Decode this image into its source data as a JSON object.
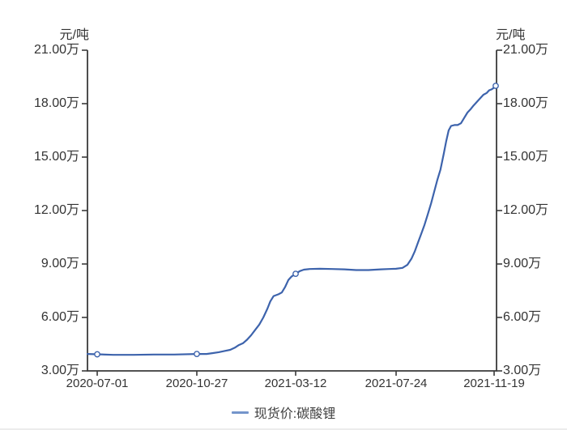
{
  "colors": {
    "line": "#3D63AC",
    "legend_swatch": "#7495CB",
    "axis": "#3a3a3a",
    "text": "#333333",
    "marker_fill": "#ffffff",
    "divider": "#ececec"
  },
  "chart_data": {
    "type": "line",
    "title": "",
    "grid": false,
    "legend_position": "bottom",
    "y_axis": {
      "unit_label_left": "元/吨",
      "unit_label_right": "元/吨",
      "min": 3,
      "max": 21,
      "value_unit": "万元/吨",
      "ticks": [
        {
          "value": 3,
          "label": "3.00万"
        },
        {
          "value": 6,
          "label": "6.00万"
        },
        {
          "value": 9,
          "label": "9.00万"
        },
        {
          "value": 12,
          "label": "12.00万"
        },
        {
          "value": 15,
          "label": "15.00万"
        },
        {
          "value": 18,
          "label": "18.00万"
        },
        {
          "value": 21,
          "label": "21.00万"
        }
      ]
    },
    "x_axis": {
      "ticks": [
        {
          "f": 0.0238,
          "label": "2020-07-01"
        },
        {
          "f": 0.2673,
          "label": "2020-10-27"
        },
        {
          "f": 0.5089,
          "label": "2021-03-12"
        },
        {
          "f": 0.7545,
          "label": "2021-07-24"
        },
        {
          "f": 0.9941,
          "label": "2021-11-19"
        }
      ]
    },
    "series": [
      {
        "name": "现货价:碳酸锂",
        "color": "#3D63AC",
        "values_unit": "万元/吨",
        "points": [
          [
            0.0,
            3.95
          ],
          [
            0.024,
            3.93
          ],
          [
            0.063,
            3.9
          ],
          [
            0.113,
            3.9
          ],
          [
            0.162,
            3.92
          ],
          [
            0.212,
            3.92
          ],
          [
            0.267,
            3.95
          ],
          [
            0.291,
            3.95
          ],
          [
            0.307,
            4.0
          ],
          [
            0.321,
            4.05
          ],
          [
            0.335,
            4.12
          ],
          [
            0.349,
            4.18
          ],
          [
            0.36,
            4.3
          ],
          [
            0.37,
            4.45
          ],
          [
            0.38,
            4.55
          ],
          [
            0.39,
            4.75
          ],
          [
            0.4,
            5.0
          ],
          [
            0.41,
            5.3
          ],
          [
            0.42,
            5.6
          ],
          [
            0.43,
            6.0
          ],
          [
            0.44,
            6.5
          ],
          [
            0.447,
            6.9
          ],
          [
            0.455,
            7.2
          ],
          [
            0.467,
            7.3
          ],
          [
            0.475,
            7.4
          ],
          [
            0.483,
            7.7
          ],
          [
            0.491,
            8.1
          ],
          [
            0.499,
            8.3
          ],
          [
            0.509,
            8.45
          ],
          [
            0.519,
            8.6
          ],
          [
            0.529,
            8.68
          ],
          [
            0.543,
            8.72
          ],
          [
            0.568,
            8.73
          ],
          [
            0.598,
            8.72
          ],
          [
            0.628,
            8.7
          ],
          [
            0.657,
            8.66
          ],
          [
            0.687,
            8.66
          ],
          [
            0.717,
            8.7
          ],
          [
            0.737,
            8.72
          ],
          [
            0.754,
            8.73
          ],
          [
            0.77,
            8.78
          ],
          [
            0.782,
            8.95
          ],
          [
            0.792,
            9.3
          ],
          [
            0.8,
            9.7
          ],
          [
            0.808,
            10.2
          ],
          [
            0.816,
            10.7
          ],
          [
            0.824,
            11.2
          ],
          [
            0.832,
            11.8
          ],
          [
            0.84,
            12.4
          ],
          [
            0.847,
            13.0
          ],
          [
            0.855,
            13.7
          ],
          [
            0.863,
            14.3
          ],
          [
            0.871,
            15.2
          ],
          [
            0.877,
            15.9
          ],
          [
            0.883,
            16.5
          ],
          [
            0.889,
            16.75
          ],
          [
            0.897,
            16.8
          ],
          [
            0.905,
            16.8
          ],
          [
            0.913,
            16.9
          ],
          [
            0.921,
            17.2
          ],
          [
            0.929,
            17.5
          ],
          [
            0.937,
            17.7
          ],
          [
            0.944,
            17.9
          ],
          [
            0.952,
            18.1
          ],
          [
            0.96,
            18.3
          ],
          [
            0.968,
            18.5
          ],
          [
            0.976,
            18.6
          ],
          [
            0.982,
            18.75
          ],
          [
            0.988,
            18.8
          ],
          [
            0.994,
            18.9
          ],
          [
            0.998,
            19.0
          ]
        ],
        "markers": [
          [
            0.0238,
            3.93
          ],
          [
            0.2673,
            3.95
          ],
          [
            0.5089,
            8.45
          ],
          [
            0.998,
            19.0
          ]
        ]
      }
    ]
  },
  "legend": {
    "items": [
      {
        "label": "现货价:碳酸锂"
      }
    ]
  }
}
